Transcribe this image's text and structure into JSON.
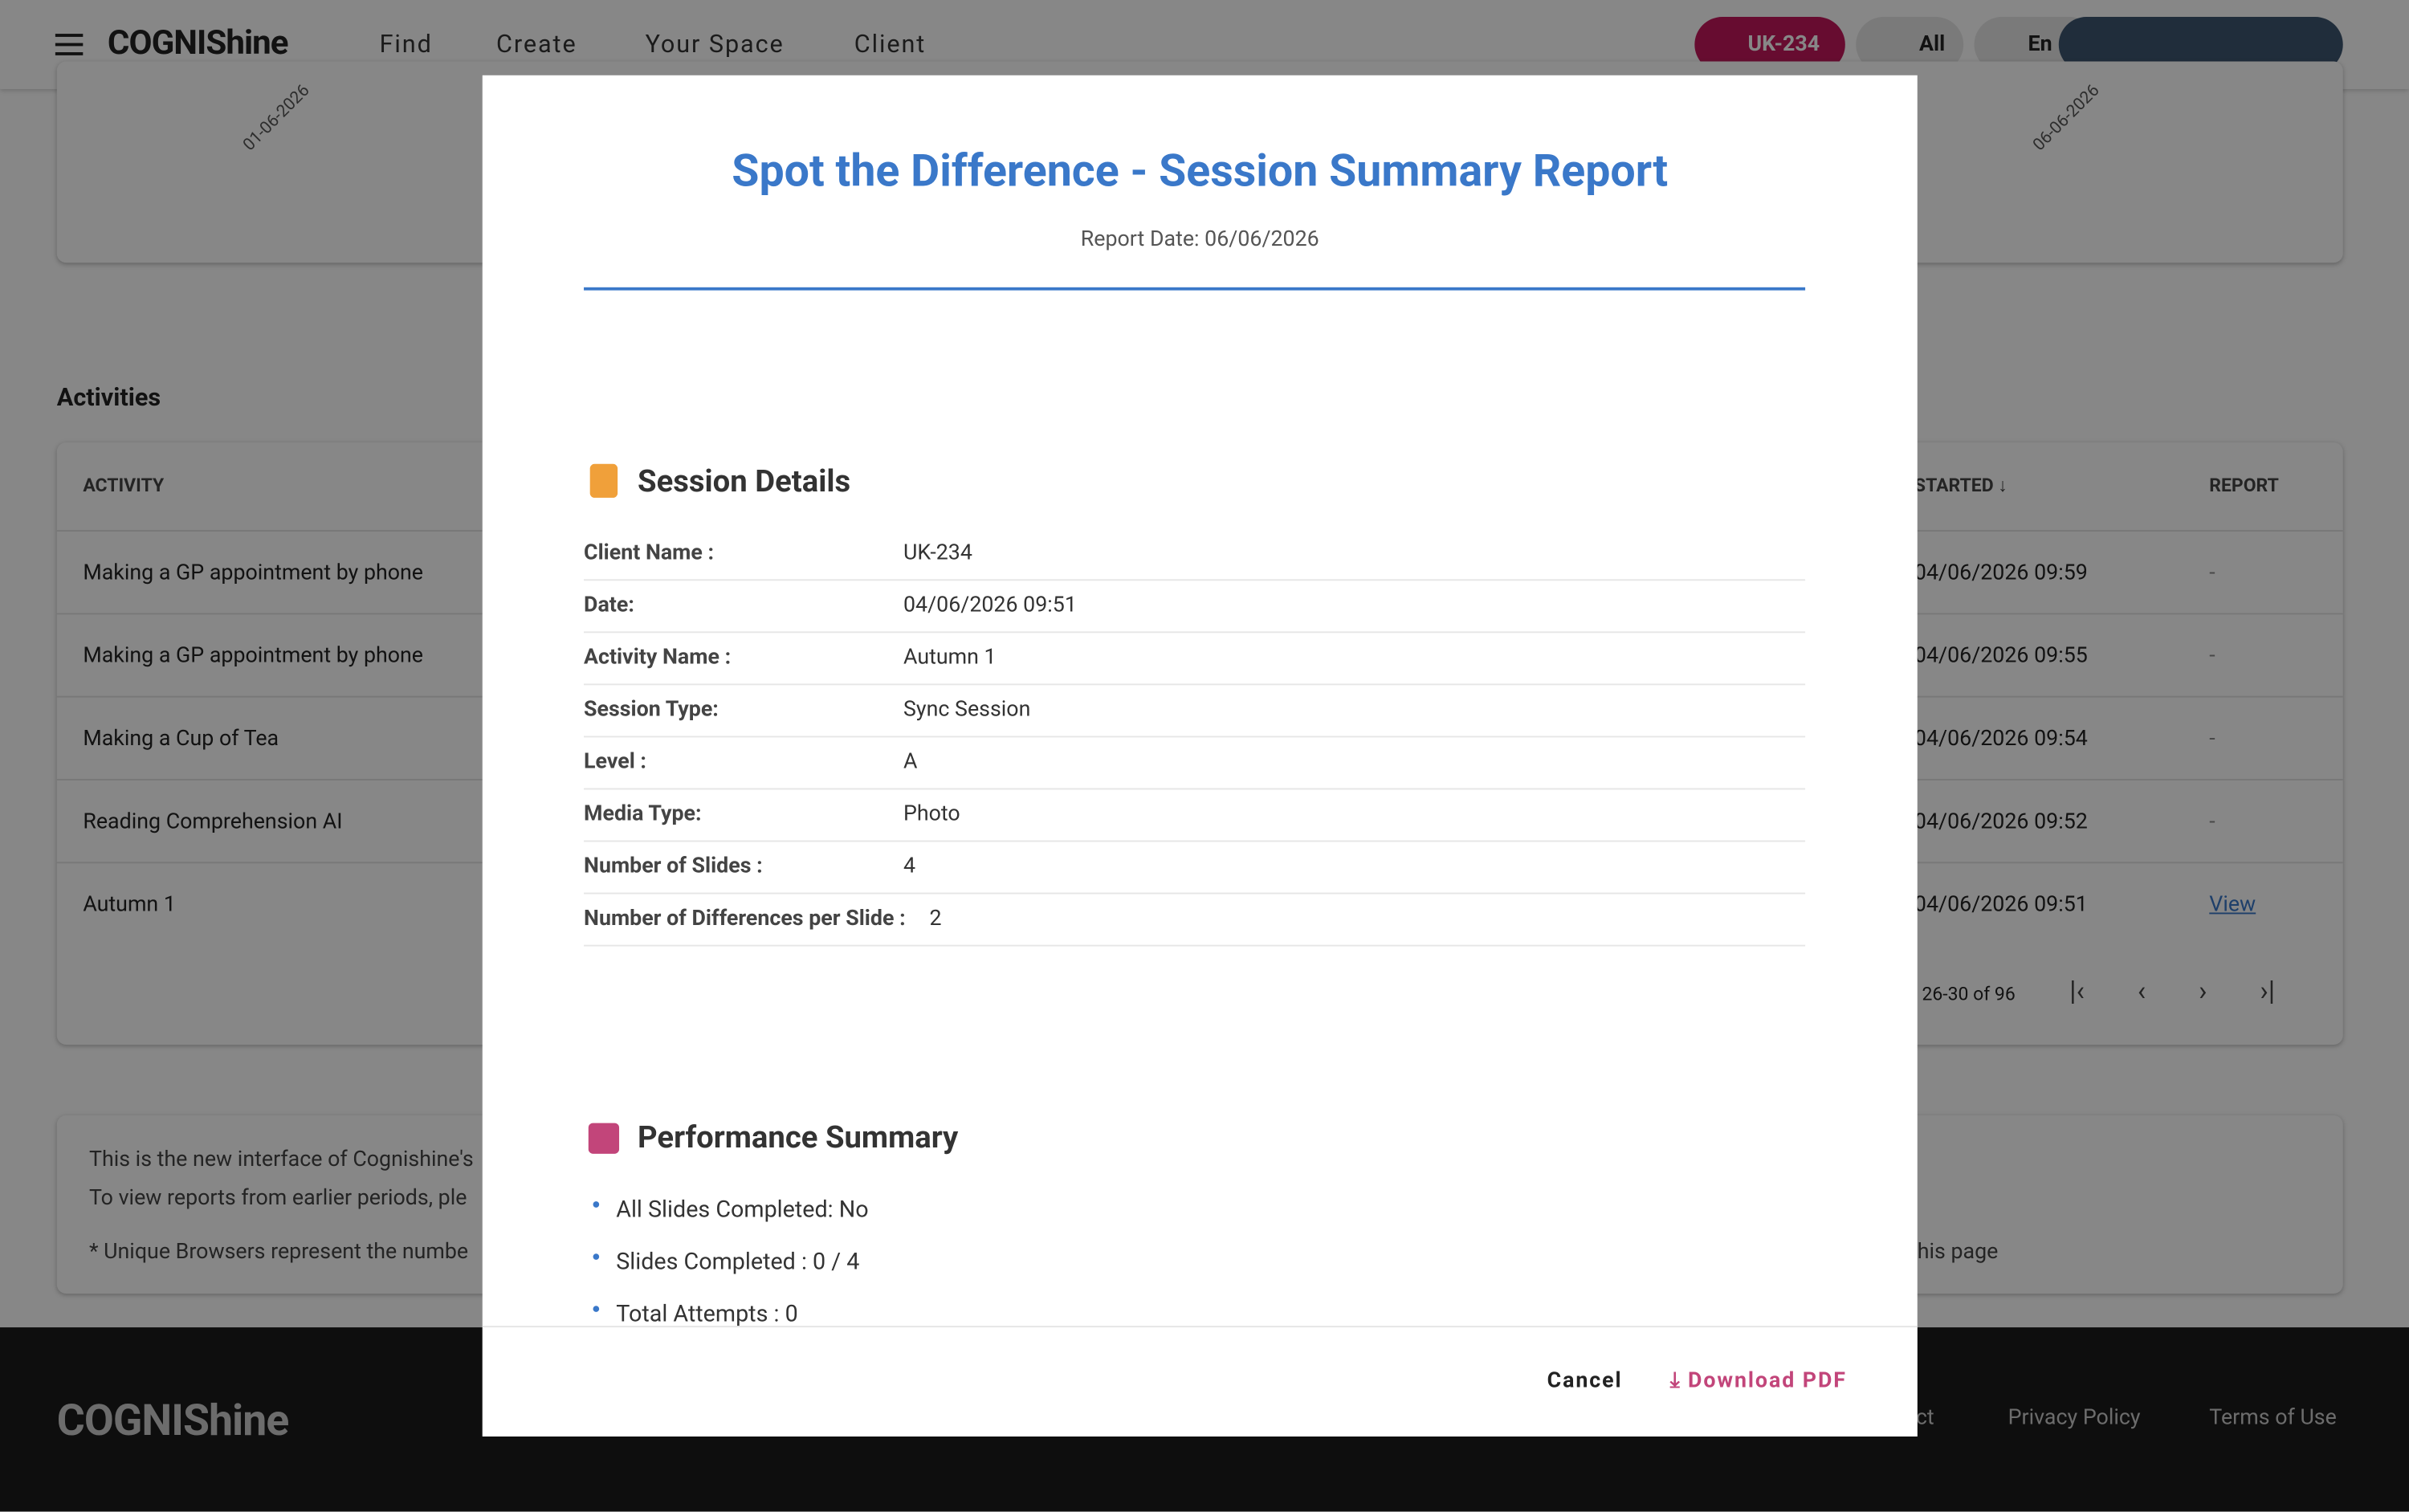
{
  "header": {
    "logo": "COGNIShine",
    "nav": [
      "Find",
      "Create",
      "Your Space",
      "Client"
    ],
    "client_chip": "UK-234",
    "group_chip": "All",
    "language": "En"
  },
  "chart_card": {
    "dates": [
      "01-06-2026",
      "06-06-2026"
    ]
  },
  "activities": {
    "title": "Activities",
    "columns": [
      "ACTIVITY",
      "STARTED",
      "REPORT"
    ],
    "rows": [
      [
        "Making a GP appointment by phone",
        "04/06/2026 09:59",
        "-"
      ],
      [
        "Making a GP appointment by phone",
        "04/06/2026 09:55",
        "-"
      ],
      [
        "Making a Cup of Tea",
        "04/06/2026 09:54",
        "-"
      ],
      [
        "Reading Comprehension AI",
        "04/06/2026 09:52",
        "-"
      ],
      [
        "Autumn 1",
        "04/06/2026 09:51",
        "View"
      ]
    ],
    "pagination": "26-30 of 96"
  },
  "info": {
    "lines": [
      "This is the new interface of Cognishine's",
      "To view reports from earlier periods, ple",
      "* Unique Browsers represent the numbe"
    ],
    "tail": "his page"
  },
  "footer": {
    "logo": "COGNIShine",
    "links": [
      "Contact",
      "Privacy Policy",
      "Terms of Use"
    ]
  },
  "modal": {
    "title": "Spot the Difference - Session Summary Report",
    "report_date": "Report Date: 06/06/2026",
    "session_heading": "Session Details",
    "details": [
      [
        "Client Name :",
        "UK-234"
      ],
      [
        "Date:",
        "04/06/2026 09:51"
      ],
      [
        "Activity Name :",
        "Autumn 1"
      ],
      [
        "Session Type:",
        "Sync Session"
      ],
      [
        "Level :",
        "A"
      ],
      [
        "Media Type:",
        "Photo"
      ],
      [
        "Number of Slides :",
        "4"
      ],
      [
        "Number of Differences per Slide :",
        "2"
      ]
    ],
    "performance_heading": "Performance Summary",
    "performance": [
      "All Slides Completed: No",
      "Slides Completed : 0 / 4",
      "Total Attempts : 0"
    ],
    "cancel": "Cancel",
    "download": "Download PDF"
  }
}
